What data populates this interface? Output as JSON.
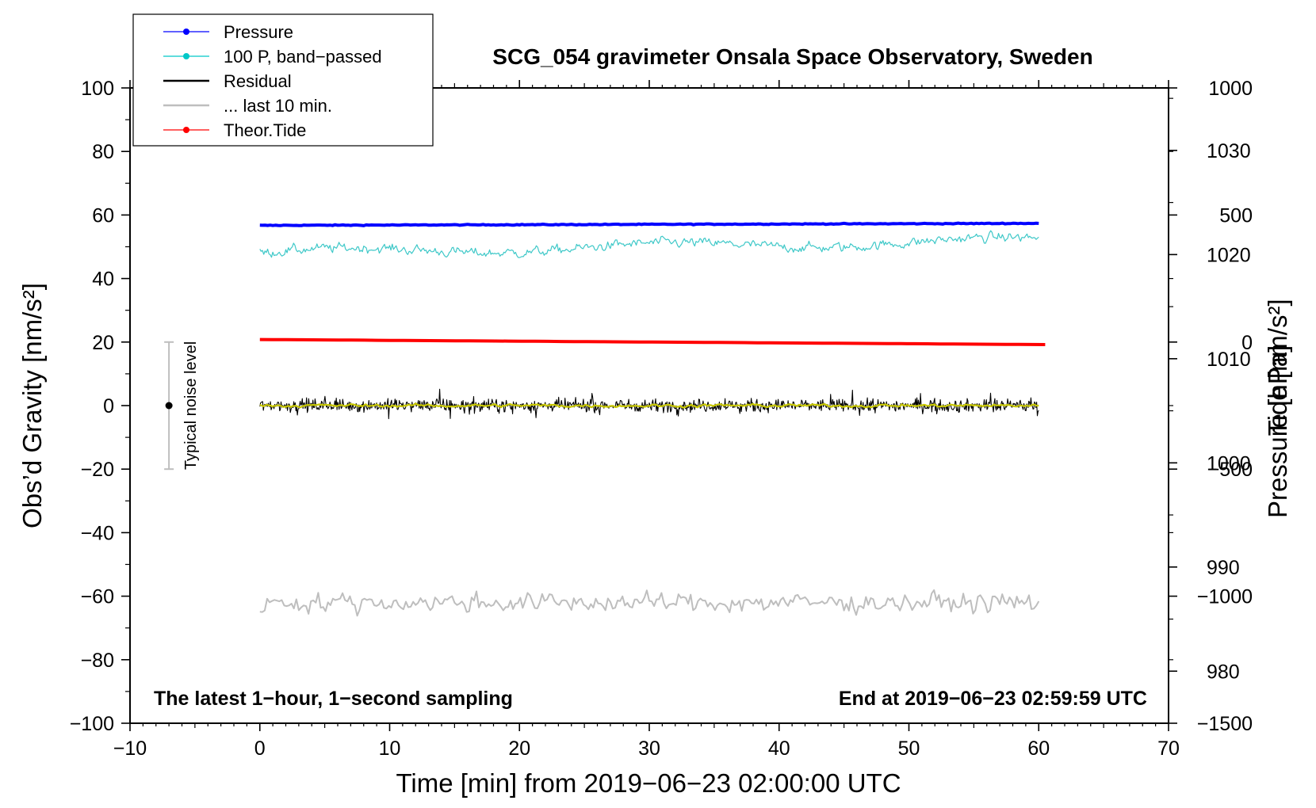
{
  "chart_data": {
    "type": "line",
    "title": "SCG_054 gravimeter Onsala Space Observatory, Sweden",
    "xlabel": "Time [min] from 2019−06−23 02:00:00 UTC",
    "ylabel_left": "Obs’d Gravity [nm/s²]",
    "ylabel_right_top": "Pressure [hPa]",
    "ylabel_right_bottom": "Tide [nm/s²]",
    "xlim": [
      -10,
      70
    ],
    "ylim_left": [
      -100,
      100
    ],
    "x_ticks": [
      "−10",
      "0",
      "10",
      "20",
      "30",
      "40",
      "50",
      "60",
      "70"
    ],
    "x_tick_values": [
      -10,
      0,
      10,
      20,
      30,
      40,
      50,
      60,
      70
    ],
    "y_ticks_left": [
      "100",
      "80",
      "60",
      "40",
      "20",
      "0",
      "−20",
      "−40",
      "−60",
      "−80",
      "−100"
    ],
    "y_tick_values_left": [
      100,
      80,
      60,
      40,
      20,
      0,
      -20,
      -40,
      -60,
      -80,
      -100
    ],
    "pressure_axis": {
      "ticks": [
        "1030",
        "1020",
        "1010",
        "1000",
        "990",
        "980"
      ],
      "values": [
        1030,
        1020,
        1010,
        1000,
        990,
        980
      ],
      "range": [
        975,
        1036
      ]
    },
    "tide_axis": {
      "ticks": [
        "1000",
        "500",
        "0",
        "−500",
        "−1000",
        "−1500"
      ],
      "values": [
        1000,
        500,
        0,
        -500,
        -1000,
        -1500
      ],
      "range": [
        -1500,
        1000
      ]
    },
    "legend": [
      {
        "label": "Pressure",
        "color": "#0000ff",
        "marker": true
      },
      {
        "label": "100 P, band−passed",
        "color": "#00c8c8",
        "marker": true
      },
      {
        "label": "Residual",
        "color": "#000000",
        "marker": false
      },
      {
        "label": "... last 10 min.",
        "color": "#bebebe",
        "marker": false
      },
      {
        "label": "Theor.Tide",
        "color": "#ff0000",
        "marker": true
      }
    ],
    "series": [
      {
        "name": "Pressure",
        "axis": "pressure",
        "color": "#0000ff",
        "x_range": [
          0,
          60
        ],
        "start": 1022.8,
        "end": 1023.0,
        "noise": 0.1
      },
      {
        "name": "100 P, band−passed",
        "axis": "left",
        "color": "#3ec8c8",
        "x_range": [
          0,
          60
        ],
        "start": 48,
        "end": 52,
        "noise": 1.3
      },
      {
        "name": "Residual",
        "axis": "left",
        "color": "#000000",
        "x_range": [
          0,
          60
        ],
        "mean": 0,
        "amplitude": 3.5
      },
      {
        "name": "Residual (smoothed)",
        "axis": "left",
        "color": "#c8c800",
        "x_range": [
          0,
          60
        ],
        "mean": 0,
        "amplitude": 1.0
      },
      {
        "name": "... last 10 min.",
        "axis": "left",
        "color": "#bebebe",
        "x_range": [
          0,
          60
        ],
        "mean": -62,
        "amplitude": 4
      },
      {
        "name": "Theor.Tide",
        "axis": "tide",
        "color": "#ff0000",
        "x_range": [
          0,
          60.5
        ],
        "start": 10,
        "end": -10
      }
    ],
    "noise_bar": {
      "label": "Typical noise level",
      "x": -7,
      "y": 0,
      "ylow": -20,
      "yhigh": 20
    },
    "annotation_left": "The latest 1−hour, 1−second sampling",
    "annotation_right": "End at 2019−06−23 02:59:59 UTC"
  }
}
